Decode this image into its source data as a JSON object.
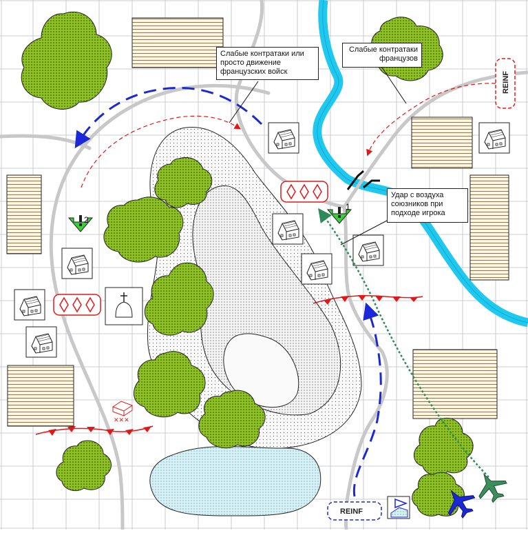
{
  "map": {
    "callouts": {
      "weak_counter_or_movement": "Слабые контратаки или просто движение французских войск",
      "weak_counter_french": "Слабые контратаки французов",
      "allied_air_strike": "Удар с воздуха союзников при подходе игрока"
    },
    "reinforcements": {
      "top_right": "REINF",
      "bottom": "REINF"
    },
    "objective_markers": {
      "first": "1",
      "second": "2"
    },
    "colors": {
      "forest": "#8fc31f",
      "river": "#1ec8ef",
      "road": "#c8c8c8",
      "player_arrow": "#1a28d8",
      "enemy_arrow": "#e01818",
      "air_strike": "#2e8a5a",
      "objective": "#38d038",
      "lake": "#d8f0f4"
    },
    "icons": [
      "house-icon",
      "church-icon",
      "field-icon",
      "objective-marker-icon",
      "aircraft-icon",
      "bunker-icon",
      "hq-flag-icon"
    ]
  }
}
